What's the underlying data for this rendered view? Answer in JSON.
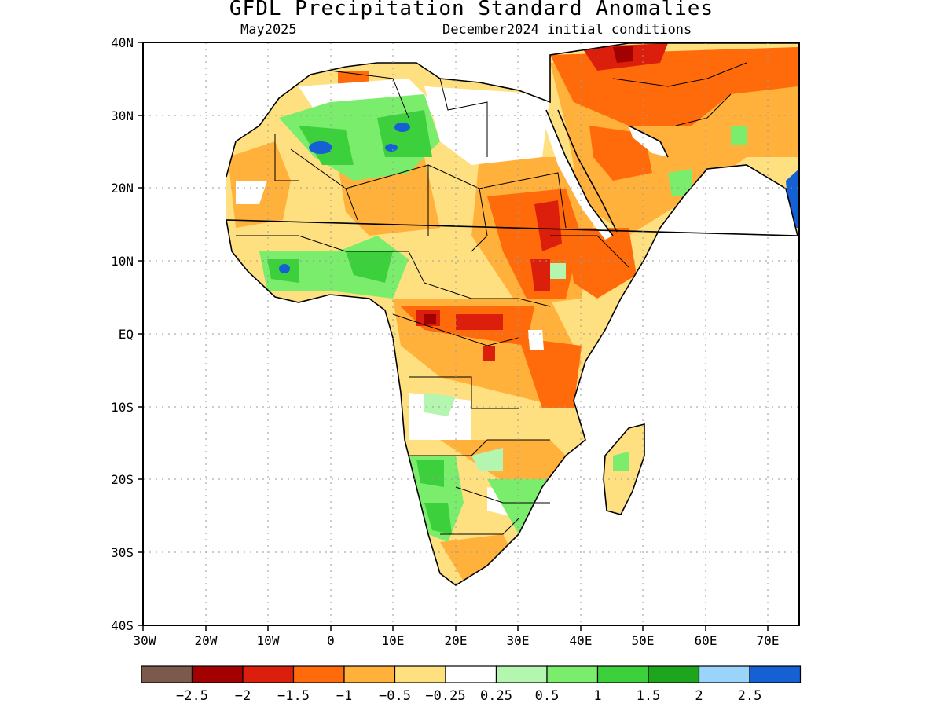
{
  "title": "GFDL Precipitation Standard Anomalies",
  "subtitle_left": "May2025",
  "subtitle_right": "December2024 initial conditions",
  "axes": {
    "lon_ticks": [
      "30W",
      "20W",
      "10W",
      "0",
      "10E",
      "20E",
      "30E",
      "40E",
      "50E",
      "60E",
      "70E"
    ],
    "lat_ticks": [
      "40N",
      "30N",
      "20N",
      "10N",
      "EQ",
      "10S",
      "20S",
      "30S",
      "40S"
    ],
    "lon_range": [
      -30,
      75
    ],
    "lat_range": [
      -40,
      40
    ],
    "grid": "dotted"
  },
  "colorbar": {
    "colors": [
      "#7b5a4c",
      "#a30000",
      "#dc1f0c",
      "#ff6a0a",
      "#ffb13c",
      "#ffe080",
      "#ffffff",
      "#b4f5b0",
      "#7aee6c",
      "#3cd03c",
      "#1ea51e",
      "#9ad4fa",
      "#1560d2"
    ],
    "labels": [
      "−2.5",
      "−2",
      "−1.5",
      "−1",
      "−0.5",
      "−0.25",
      "0.25",
      "0.5",
      "1",
      "1.5",
      "2",
      "2.5"
    ]
  }
}
